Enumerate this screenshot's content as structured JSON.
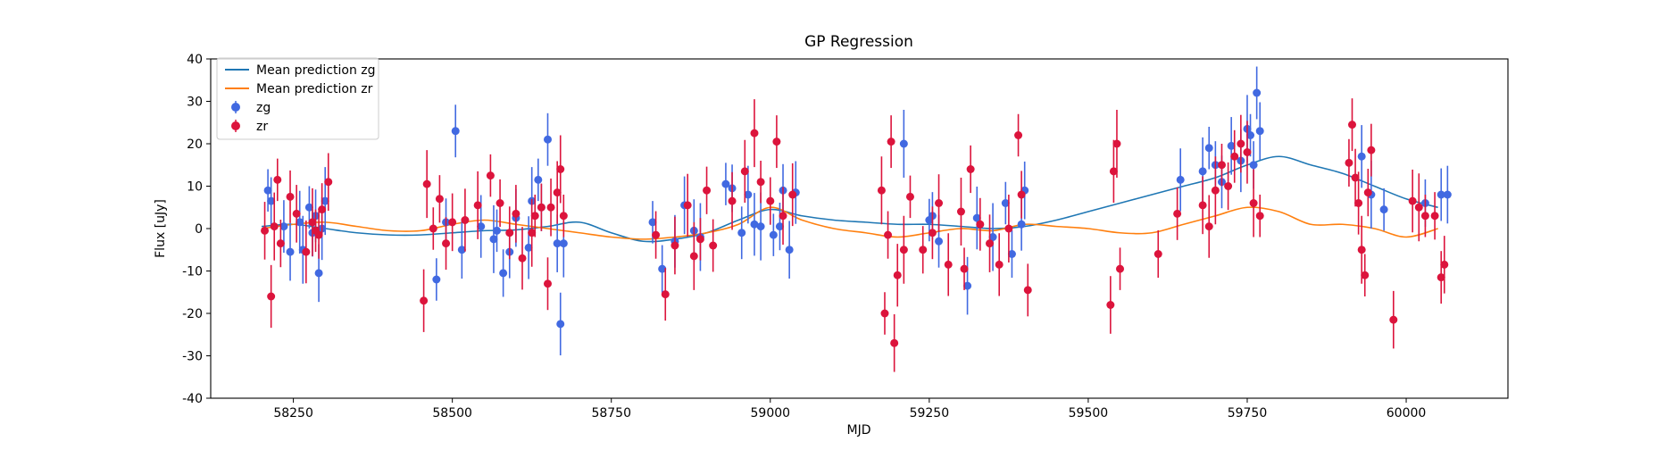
{
  "chart_data": {
    "type": "scatter",
    "title": "GP Regression",
    "xlabel": "MJD",
    "ylabel": "Flux [uJy]",
    "xlim": [
      58120,
      60160
    ],
    "ylim": [
      -40,
      40
    ],
    "x_ticks": [
      58250,
      58500,
      58750,
      59000,
      59250,
      59500,
      59750,
      60000
    ],
    "y_ticks": [
      -40,
      -30,
      -20,
      -10,
      0,
      10,
      20,
      30,
      40
    ],
    "grid": false,
    "legend_position": "top-left",
    "colors": {
      "zg_points": "#4169e1",
      "zr_points": "#dc143c",
      "zg_line": "#1f77b4",
      "zr_line": "#ff7f0e"
    },
    "lines": [
      {
        "name": "Mean prediction zg",
        "x": [
          58200,
          58250,
          58300,
          58350,
          58400,
          58450,
          58500,
          58550,
          58600,
          58650,
          58700,
          58750,
          58800,
          58850,
          58900,
          58950,
          59000,
          59050,
          59100,
          59150,
          59200,
          59250,
          59300,
          59350,
          59400,
          59450,
          59500,
          59550,
          59600,
          59650,
          59700,
          59750,
          59800,
          59850,
          59900,
          59950,
          60000,
          60050
        ],
        "y": [
          0.5,
          1,
          0,
          -1,
          -1.5,
          -1.5,
          -1,
          -0.5,
          -0.3,
          0.5,
          1.5,
          -1,
          -3,
          -2.5,
          -1,
          2,
          4.5,
          3,
          2,
          1.5,
          1,
          1,
          0.5,
          0,
          0.5,
          2,
          4,
          6,
          8,
          10,
          12,
          15,
          17,
          15,
          13,
          10,
          7,
          5
        ]
      },
      {
        "name": "Mean prediction zr",
        "x": [
          58200,
          58250,
          58300,
          58350,
          58400,
          58450,
          58500,
          58550,
          58600,
          58650,
          58700,
          58750,
          58800,
          58850,
          58900,
          58950,
          59000,
          59050,
          59100,
          59150,
          59200,
          59250,
          59300,
          59350,
          59400,
          59450,
          59500,
          59550,
          59600,
          59650,
          59700,
          59750,
          59800,
          59850,
          59900,
          59950,
          60000,
          60050
        ],
        "y": [
          0,
          1,
          1.5,
          0.5,
          -0.5,
          -0.5,
          1,
          2,
          1,
          0,
          -1,
          -2,
          -2.5,
          -2,
          -1,
          1,
          5,
          2,
          0,
          -1,
          -2,
          -1,
          0,
          -0.5,
          1,
          0.5,
          0,
          -1,
          -1,
          1,
          3,
          5,
          4,
          1,
          1,
          0,
          -2,
          0
        ]
      }
    ],
    "series": [
      {
        "name": "zg",
        "x": [
          58210,
          58215,
          58235,
          58245,
          58260,
          58265,
          58275,
          58280,
          58285,
          58290,
          58295,
          58300,
          58475,
          58490,
          58505,
          58515,
          58545,
          58565,
          58570,
          58580,
          58590,
          58600,
          58620,
          58625,
          58635,
          58640,
          58650,
          58665,
          58670,
          58675,
          58815,
          58830,
          58850,
          58865,
          58880,
          58890,
          58930,
          58940,
          58955,
          58965,
          58975,
          58985,
          59005,
          59015,
          59020,
          59030,
          59040,
          59210,
          59250,
          59255,
          59265,
          59310,
          59325,
          59350,
          59370,
          59380,
          59395,
          59400,
          59645,
          59680,
          59690,
          59700,
          59710,
          59725,
          59740,
          59750,
          59755,
          59760,
          59765,
          59770,
          59930,
          59945,
          59965,
          60030,
          60055,
          60065
        ],
        "y": [
          9,
          6.5,
          0.5,
          -5.5,
          1.5,
          -5,
          5,
          -1,
          3,
          -10.5,
          0,
          6.5,
          -12,
          1.5,
          23,
          -5,
          0.5,
          -2.5,
          -0.5,
          -10.5,
          -5.5,
          2.5,
          -4.5,
          6.5,
          11.5,
          5,
          21,
          -3.5,
          -22.5,
          -3.5,
          1.5,
          -9.5,
          -3,
          5.5,
          -0.5,
          -2,
          10.5,
          9.5,
          -1,
          8,
          1,
          0.5,
          -1.5,
          0.5,
          9,
          -5,
          8.5,
          20,
          2,
          3,
          -3,
          -13.5,
          2.5,
          -2,
          6,
          -6,
          1,
          9,
          11.5,
          13.5,
          19,
          15,
          11,
          19.5,
          16,
          23.5,
          22,
          15,
          32,
          23,
          17,
          8,
          4.5,
          6,
          8,
          8
        ]
      },
      {
        "name": "zr",
        "x": [
          58205,
          58215,
          58220,
          58225,
          58230,
          58245,
          58255,
          58270,
          58280,
          58285,
          58290,
          58295,
          58305,
          58455,
          58460,
          58470,
          58480,
          58490,
          58500,
          58520,
          58540,
          58560,
          58575,
          58590,
          58600,
          58610,
          58625,
          58630,
          58640,
          58650,
          58655,
          58665,
          58670,
          58675,
          58820,
          58835,
          58850,
          58870,
          58880,
          58890,
          58900,
          58910,
          58940,
          58960,
          58975,
          58985,
          59000,
          59010,
          59020,
          59035,
          59175,
          59180,
          59185,
          59190,
          59195,
          59200,
          59210,
          59220,
          59240,
          59255,
          59265,
          59280,
          59300,
          59305,
          59315,
          59330,
          59345,
          59360,
          59375,
          59390,
          59395,
          59405,
          59535,
          59540,
          59545,
          59550,
          59610,
          59640,
          59680,
          59690,
          59700,
          59710,
          59720,
          59730,
          59740,
          59750,
          59760,
          59770,
          59910,
          59915,
          59920,
          59925,
          59930,
          59935,
          59940,
          59945,
          59980,
          60010,
          60020,
          60030,
          60045,
          60055,
          60060
        ],
        "y": [
          -0.5,
          -16,
          0.5,
          11.5,
          -3.5,
          7.5,
          3.5,
          -5.5,
          1.5,
          -0.5,
          -1.5,
          4.5,
          11,
          -17,
          10.5,
          0,
          7,
          -3.5,
          1.5,
          2,
          5.5,
          12.5,
          6,
          -1,
          3.5,
          -7,
          -1,
          3,
          5,
          -13,
          5,
          8.5,
          14,
          3,
          -1.5,
          -15.5,
          -4,
          5.5,
          -6.5,
          -2.5,
          9,
          -4,
          6.5,
          13.5,
          22.5,
          11,
          6.5,
          20.5,
          3,
          8,
          9,
          -20,
          -1.5,
          20.5,
          -27,
          -11,
          -5,
          7.5,
          -5,
          -1,
          6,
          -8.5,
          4,
          -9.5,
          14,
          1,
          -3.5,
          -8.5,
          0,
          22,
          8,
          -14.5,
          -18,
          13.5,
          20,
          -9.5,
          -6,
          3.5,
          5.5,
          0.5,
          9,
          15,
          10,
          17,
          20,
          18,
          6,
          3,
          15.5,
          24.5,
          12,
          6,
          -5,
          -11,
          8.5,
          18.5,
          -21.5,
          6.5,
          5,
          3,
          3,
          -11.5,
          -8.5
        ]
      }
    ],
    "error_bars": "roughly ±5 to ±8 uJy per point"
  }
}
